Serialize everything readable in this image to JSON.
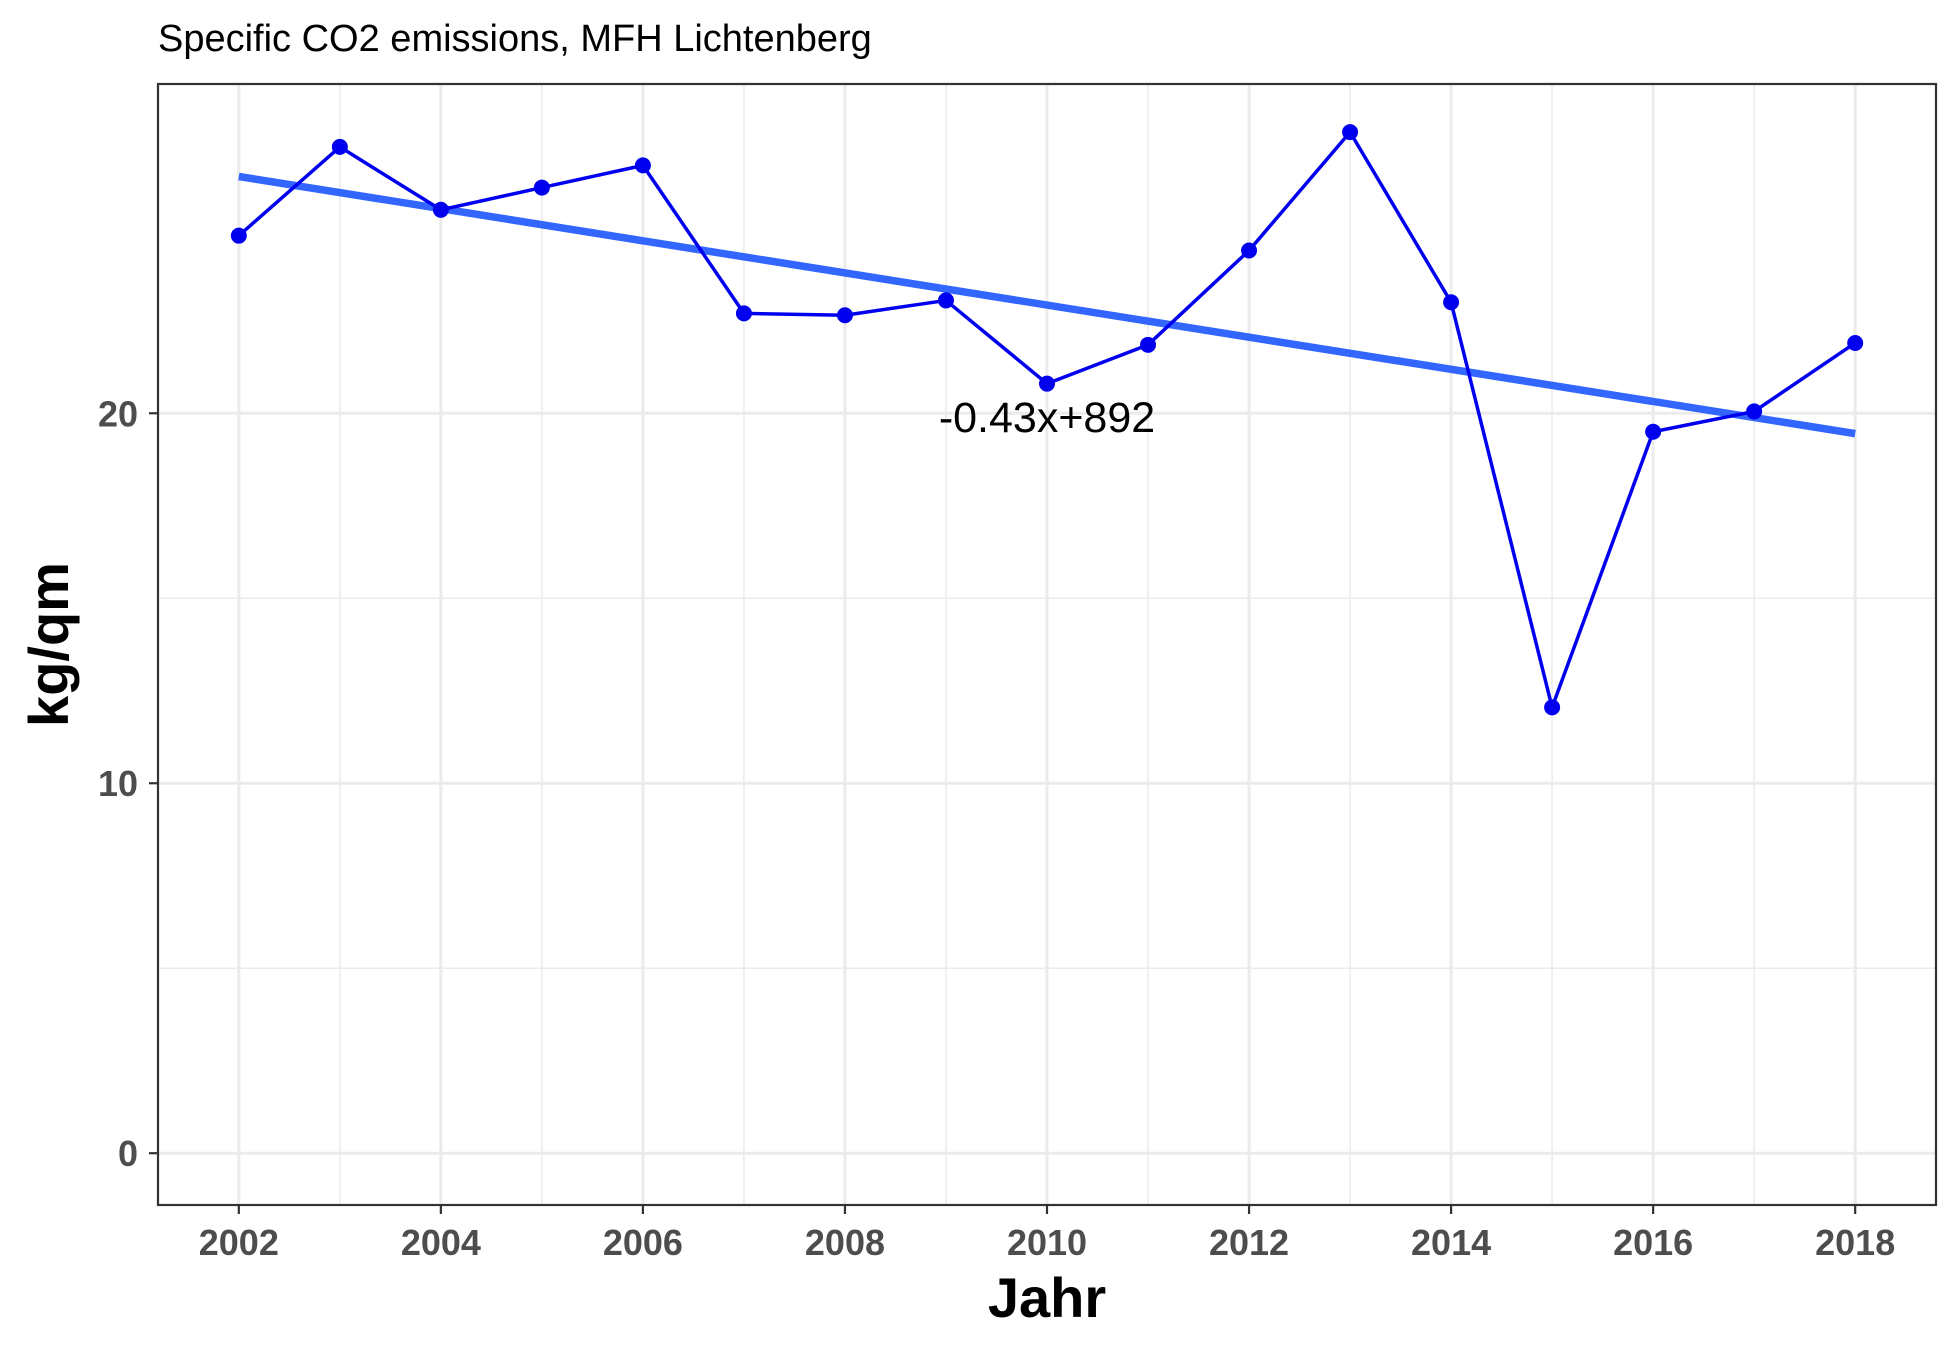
{
  "chart_data": {
    "type": "line",
    "title": "Specific CO2 emissions, MFH Lichtenberg",
    "xlabel": "Jahr",
    "ylabel": "kg/qm",
    "xlim": [
      2001.2,
      2018.8
    ],
    "ylim": [
      -1.4,
      28.9
    ],
    "x_ticks": [
      2002,
      2004,
      2006,
      2008,
      2010,
      2012,
      2014,
      2016,
      2018
    ],
    "y_ticks": [
      0,
      10,
      20
    ],
    "grid": true,
    "legend": "none",
    "series": [
      {
        "color": "#0000ee",
        "x": [
          2002,
          2003,
          2004,
          2005,
          2006,
          2007,
          2008,
          2009,
          2010,
          2011,
          2012,
          2013,
          2014,
          2015,
          2016,
          2017,
          2018
        ],
        "y": [
          24.8,
          27.2,
          25.5,
          26.1,
          26.7,
          22.7,
          22.65,
          23.05,
          20.8,
          21.85,
          24.4,
          27.6,
          23.0,
          12.05,
          19.5,
          20.05,
          21.9
        ]
      }
    ],
    "trend_line": {
      "color": "#3366ff",
      "x": [
        2002,
        2018
      ],
      "y": [
        26.4,
        19.45
      ]
    },
    "annotation": {
      "text": "-0.43x+892",
      "x": 2010,
      "y": 19.9
    }
  }
}
